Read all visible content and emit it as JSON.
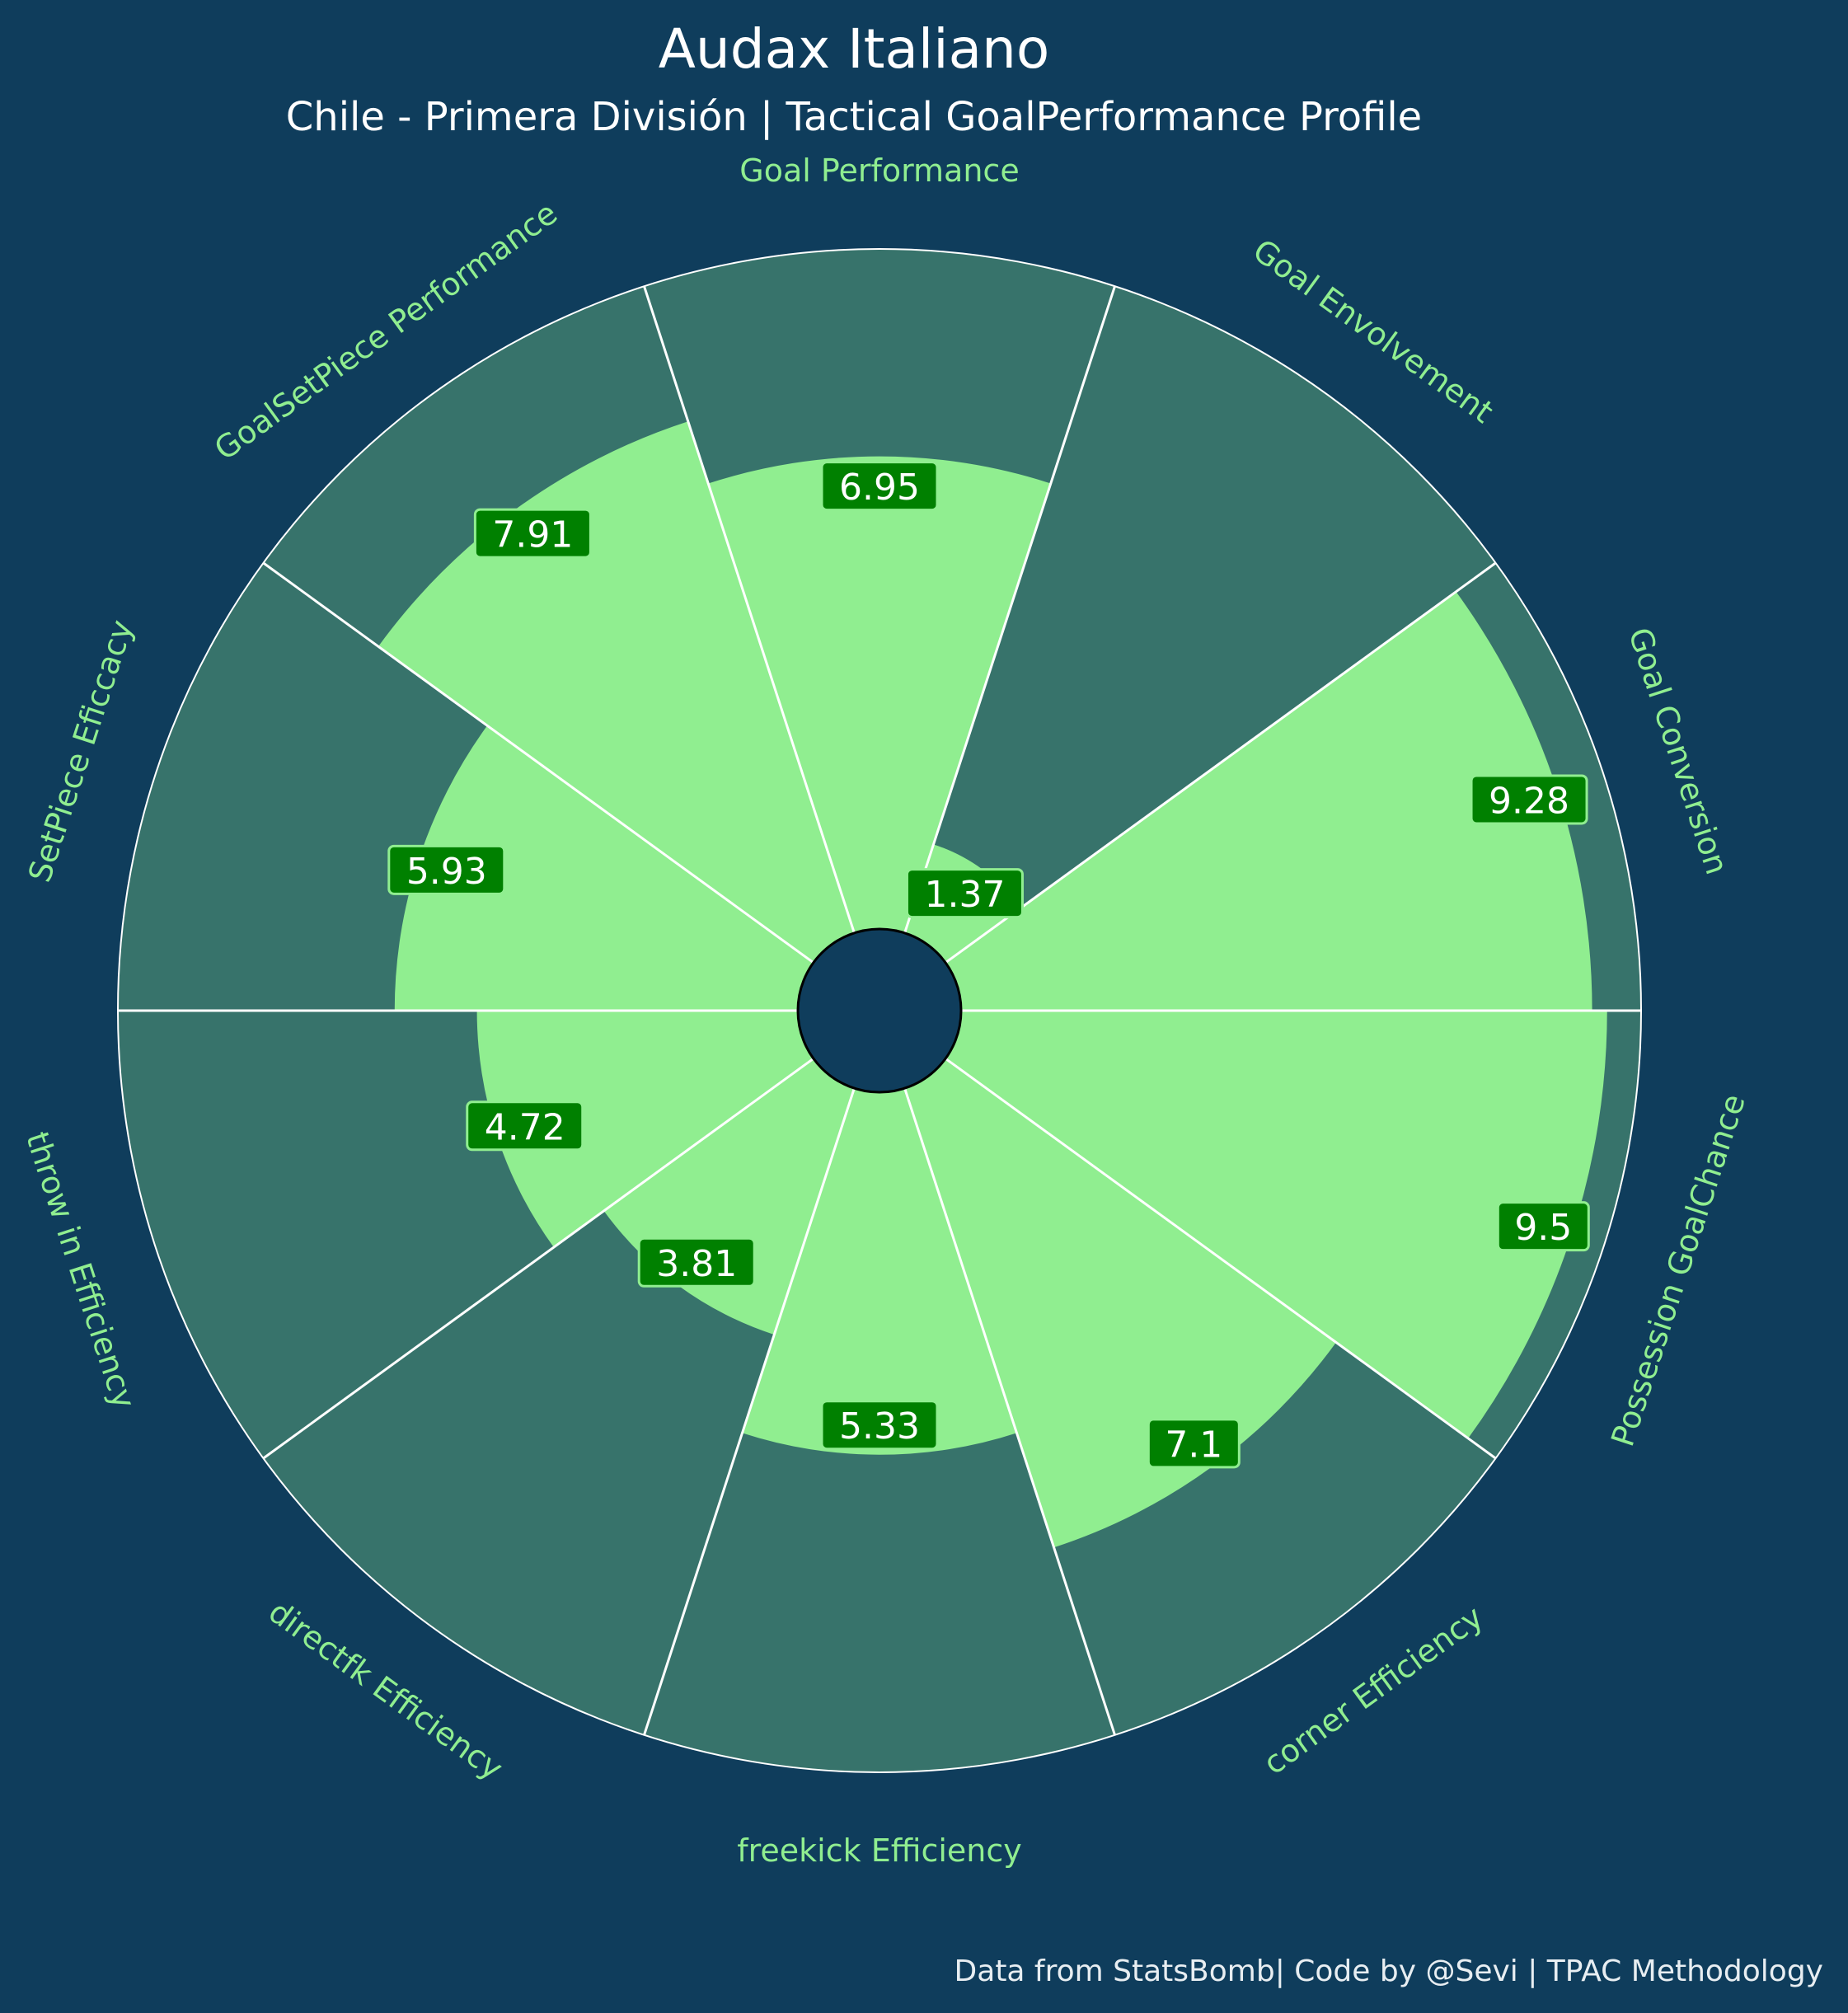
{
  "chart_data": {
    "type": "radial-bar",
    "title": "Audax Italiano",
    "subtitle": "Chile - Primera División | Tactical GoalPerformance Profile",
    "footer": "Data from StatsBomb| Code by @Sevi | TPAC Methodology",
    "rlim": [
      0,
      10
    ],
    "categories": [
      "Goal Performance",
      "Goal Envolvement",
      "Goal Conversion",
      "Possession GoalChance",
      "corner Efficiency",
      "freekick Efficiency",
      "directfk Efficiency",
      "throw in Efficiency",
      "SetPiece Eficcacy",
      "GoalSetPiece Performance"
    ],
    "values": [
      6.95,
      1.37,
      9.28,
      9.5,
      7.1,
      5.33,
      3.81,
      4.72,
      5.93,
      7.91
    ],
    "colors": {
      "background": "#0f3d5c",
      "slice_background": "#37736b",
      "slice_value": "#90ee90",
      "label_box": "#008000",
      "label_border": "#90ee90",
      "category_text": "#90ee90",
      "title_text": "#ffffff",
      "edge": "#ffffff"
    }
  }
}
